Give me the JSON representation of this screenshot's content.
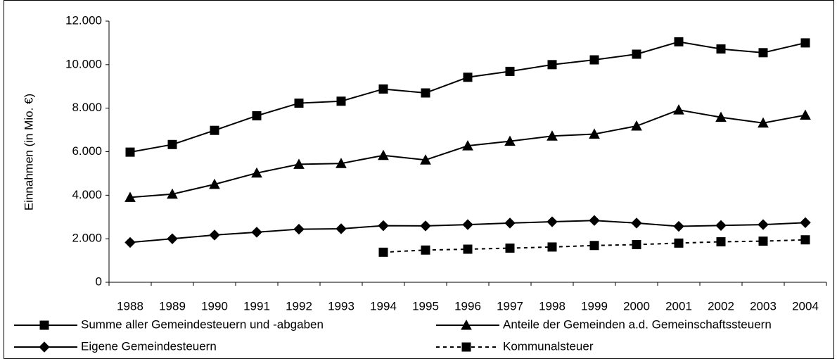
{
  "chart_data": {
    "type": "line",
    "y_label": "Einnahmen (in Mio. €)",
    "categories": [
      "1988",
      "1989",
      "1990",
      "1991",
      "1992",
      "1993",
      "1994",
      "1995",
      "1996",
      "1997",
      "1998",
      "1999",
      "2000",
      "2001",
      "2002",
      "2003",
      "2004"
    ],
    "ylim": [
      0,
      12000
    ],
    "yticks": [
      0,
      {
        "value": 2000,
        "label": "2.000"
      },
      {
        "value": 4000,
        "label": "4.000"
      },
      {
        "value": 6000,
        "label": "6.000"
      },
      {
        "value": 8000,
        "label": "8.000"
      },
      {
        "value": 10000,
        "label": "10.000"
      },
      {
        "value": 12000,
        "label": "12.000"
      }
    ],
    "series": [
      {
        "name": "Summe aller Gemeindesteuern und -abgaben",
        "color": "#000000",
        "marker": "square",
        "dashed": false,
        "values": [
          5980,
          6330,
          6980,
          7650,
          8230,
          8320,
          8880,
          8700,
          9420,
          9690,
          10000,
          10220,
          10480,
          11050,
          10720,
          10550,
          11000
        ]
      },
      {
        "name": "Anteile der Gemeinden a.d. Gemeinschaftssteuern",
        "color": "#000000",
        "marker": "triangle",
        "dashed": false,
        "values": [
          3900,
          4050,
          4500,
          5020,
          5420,
          5460,
          5830,
          5620,
          6270,
          6480,
          6720,
          6810,
          7180,
          7920,
          7580,
          7320,
          7680
        ]
      },
      {
        "name": "Eigene Gemeindesteuern",
        "color": "#000000",
        "marker": "diamond",
        "dashed": false,
        "values": [
          1830,
          2000,
          2170,
          2300,
          2440,
          2460,
          2600,
          2590,
          2650,
          2720,
          2780,
          2840,
          2720,
          2570,
          2610,
          2650,
          2740
        ]
      },
      {
        "name": "Kommunalsteuer",
        "color": "#000000",
        "marker": "square",
        "dashed": true,
        "values": [
          null,
          null,
          null,
          null,
          null,
          null,
          1380,
          1480,
          1520,
          1570,
          1620,
          1690,
          1730,
          1800,
          1860,
          1890,
          1950
        ]
      }
    ]
  }
}
